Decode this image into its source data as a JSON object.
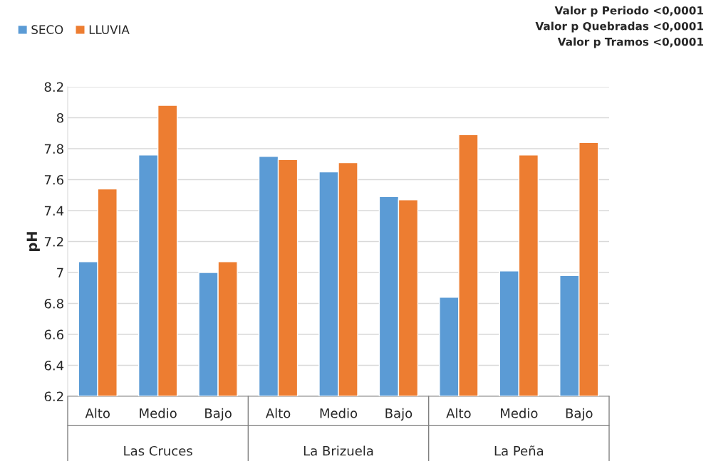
{
  "chart_data": {
    "type": "bar",
    "categories": [
      "Alto",
      "Medio",
      "Bajo",
      "Alto",
      "Medio",
      "Bajo",
      "Alto",
      "Medio",
      "Bajo"
    ],
    "series": [
      {
        "name": "SECO",
        "color": "#5b9bd5",
        "values": [
          7.07,
          7.76,
          7.0,
          7.75,
          7.65,
          7.49,
          6.84,
          7.01,
          6.98
        ]
      },
      {
        "name": "LLUVIA",
        "color": "#ed7d31",
        "values": [
          7.54,
          8.08,
          7.07,
          7.73,
          7.71,
          7.47,
          7.89,
          7.76,
          7.84
        ]
      }
    ],
    "ylabel": "pH",
    "ylim": [
      6.2,
      8.2
    ],
    "yticks": [
      6.2,
      6.4,
      6.6,
      6.8,
      7,
      7.2,
      7.4,
      7.6,
      7.8,
      8,
      8.2
    ],
    "annotations": [
      "Valor p Periodo <0,0001",
      "Valor p Quebradas <0,0001",
      "Valor p Tramos <0,0001",
      "Las Cruces",
      "La Brizuela",
      "La Peña"
    ],
    "grid": "y",
    "legend": "top left"
  }
}
